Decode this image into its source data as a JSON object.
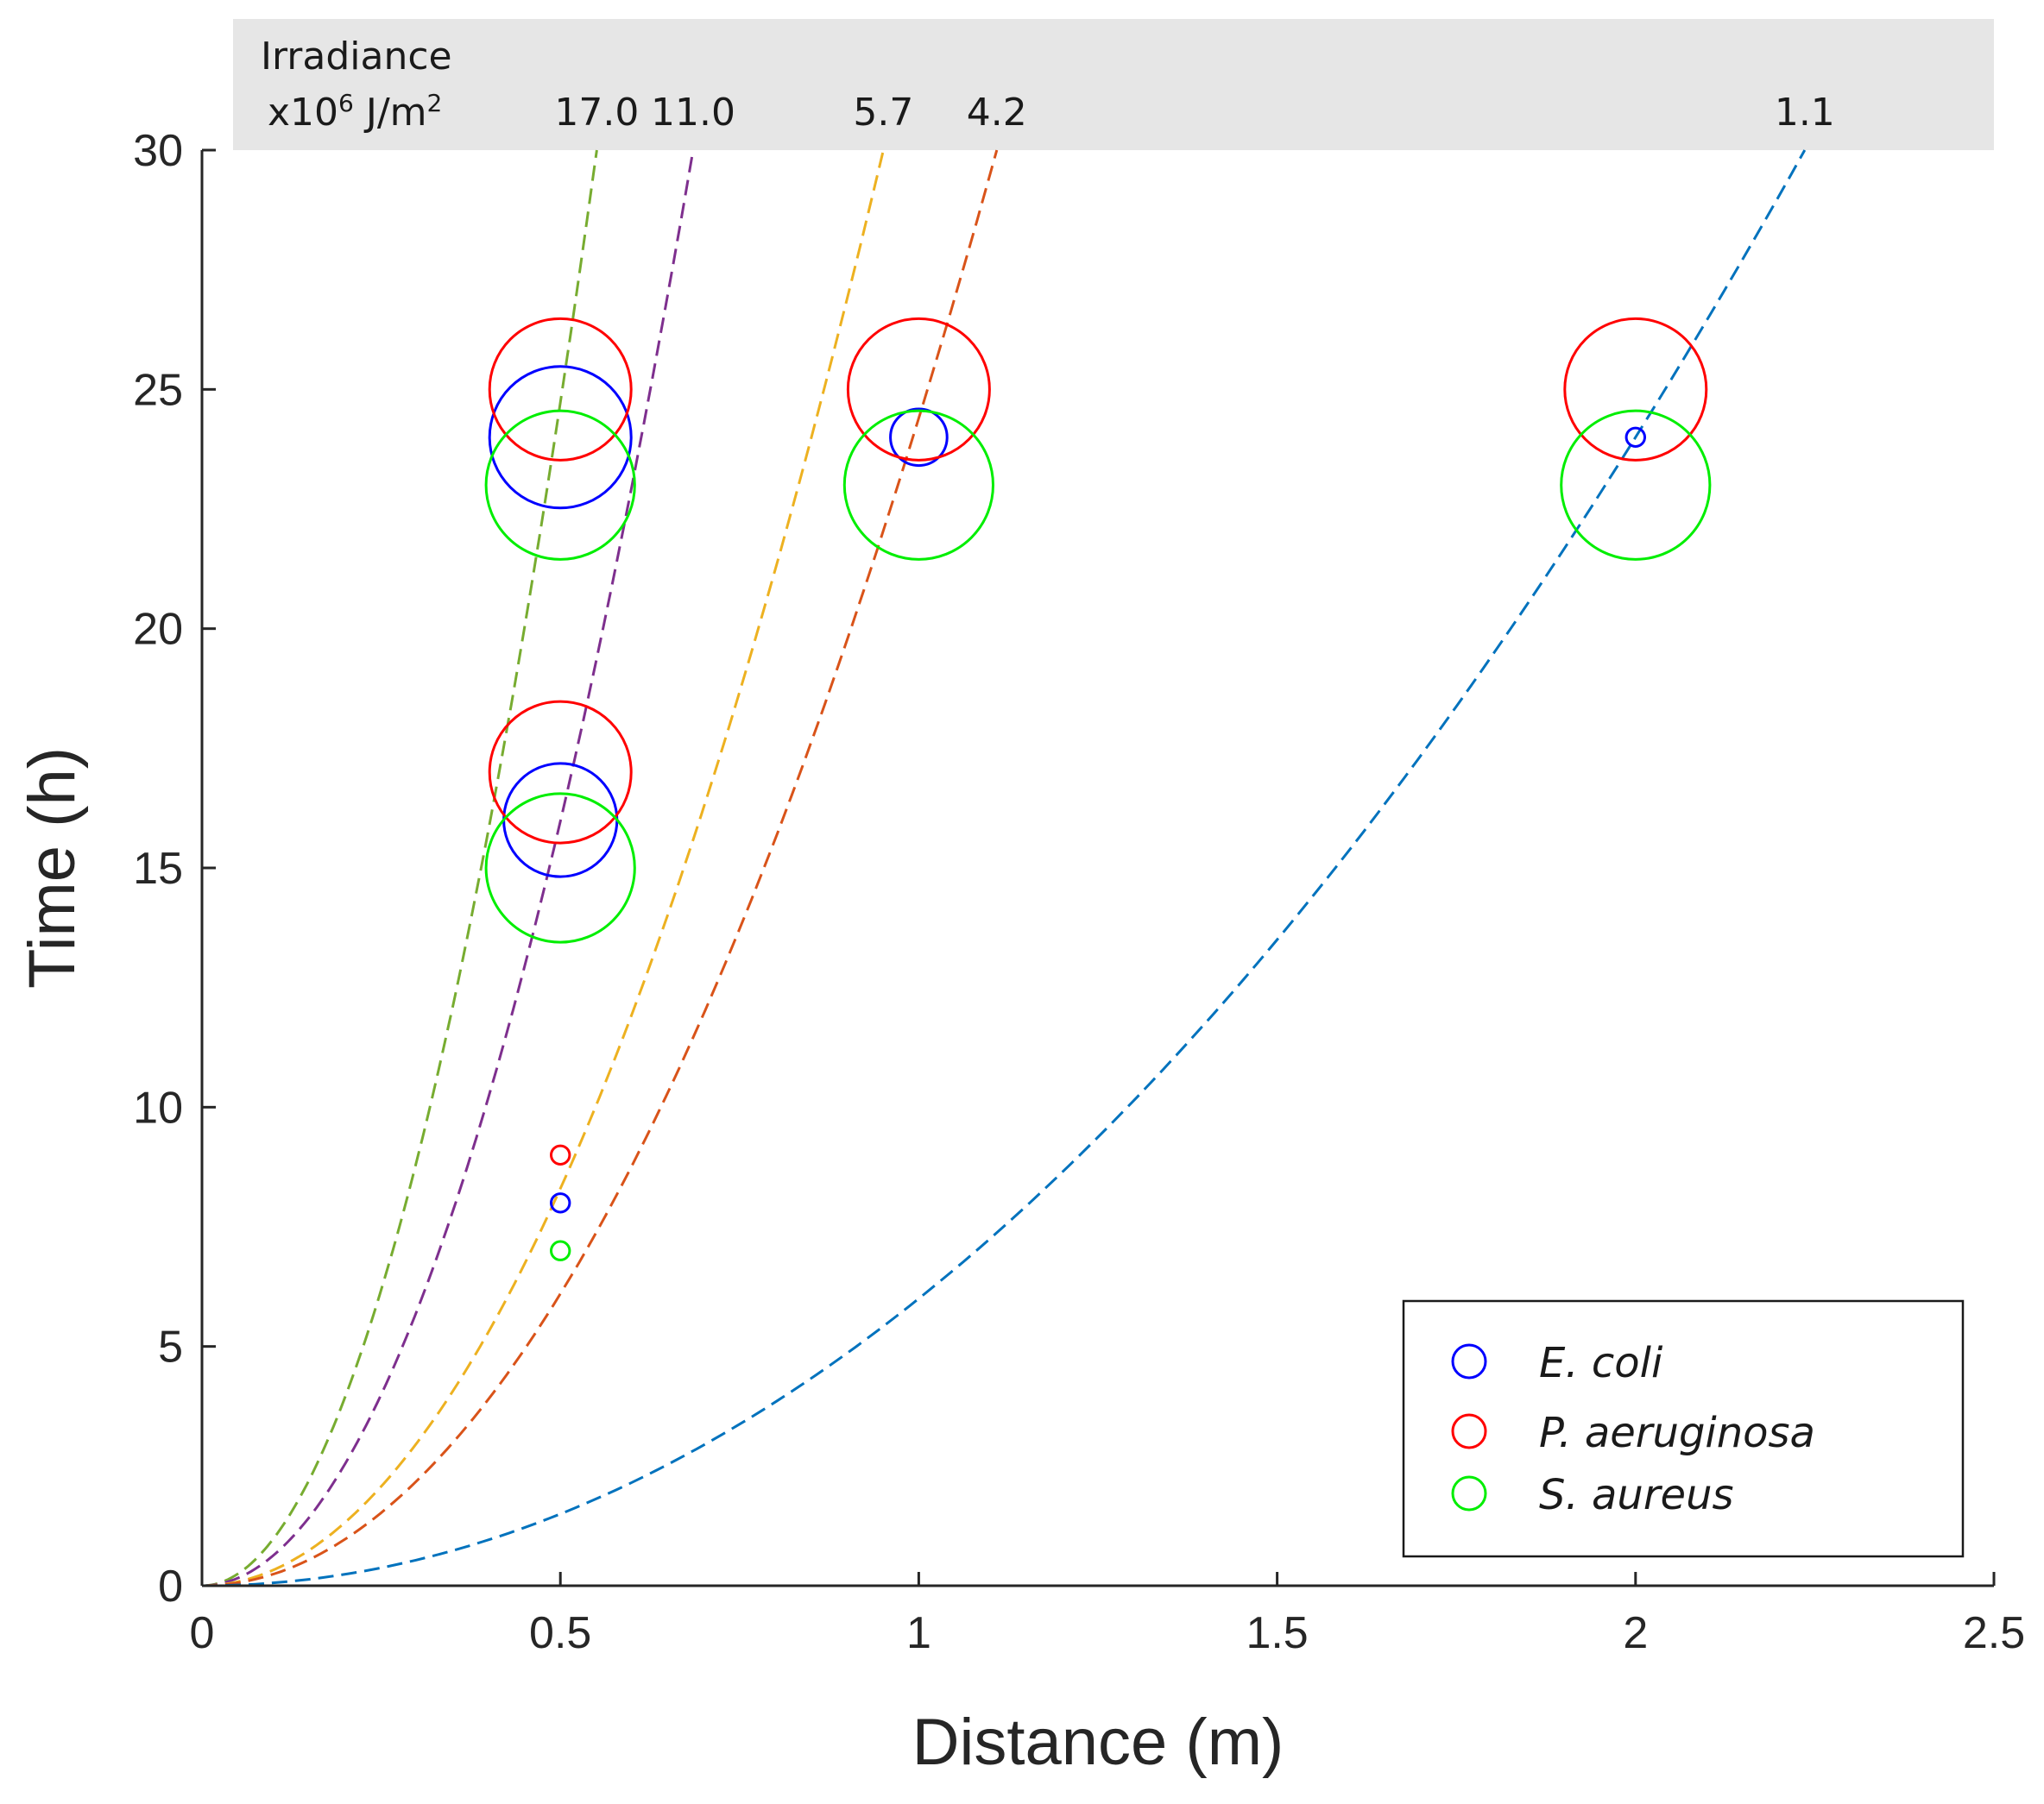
{
  "chart_data": {
    "type": "scatter",
    "xlabel": "Distance (m)",
    "ylabel": "Time (h)",
    "xlim": [
      0,
      2.5
    ],
    "ylim": [
      0,
      30
    ],
    "xticks": [
      0,
      0.5,
      1,
      1.5,
      2,
      2.5
    ],
    "xtick_labels": [
      "0",
      "0.5",
      "1",
      "1.5",
      "2",
      "2.5"
    ],
    "yticks": [
      0,
      5,
      10,
      15,
      20,
      25,
      30
    ],
    "ytick_labels": [
      "0",
      "5",
      "10",
      "15",
      "20",
      "25",
      "30"
    ],
    "grid": false,
    "irradiance_header": {
      "label_line1": "Irradiance",
      "label_line2_prefix": "x10",
      "label_line2_sup": "6",
      "label_line2_unit": " J/m",
      "label_line2_unit_sup": "2"
    },
    "curves": [
      {
        "irradiance": "17.0",
        "color": "#77ac30",
        "coef": 98.9
      },
      {
        "irradiance": "11.0",
        "color": "#7e2f8e",
        "coef": 63.9
      },
      {
        "irradiance": "5.7",
        "color": "#edb120",
        "coef": 33.2
      },
      {
        "irradiance": "4.2",
        "color": "#d95319",
        "coef": 24.4
      },
      {
        "irradiance": "1.1",
        "color": "#0072bd",
        "coef": 6.0
      }
    ],
    "series": [
      {
        "name": "E. coli",
        "color": "#0000ff",
        "points": [
          {
            "x": 0.5,
            "y": 24,
            "size": 1.0
          },
          {
            "x": 0.5,
            "y": 16,
            "size": 0.8
          },
          {
            "x": 0.5,
            "y": 8,
            "size": 0.13
          },
          {
            "x": 1.0,
            "y": 24,
            "size": 0.4
          },
          {
            "x": 2.0,
            "y": 24,
            "size": 0.13
          }
        ]
      },
      {
        "name": "P. aeruginosa",
        "color": "#ff0000",
        "points": [
          {
            "x": 0.5,
            "y": 25,
            "size": 1.0
          },
          {
            "x": 0.5,
            "y": 17,
            "size": 1.0
          },
          {
            "x": 0.5,
            "y": 9,
            "size": 0.13
          },
          {
            "x": 1.0,
            "y": 25,
            "size": 1.0
          },
          {
            "x": 2.0,
            "y": 25,
            "size": 1.0
          }
        ]
      },
      {
        "name": "S. aureus",
        "color": "#00ee00",
        "points": [
          {
            "x": 0.5,
            "y": 23,
            "size": 1.05
          },
          {
            "x": 0.5,
            "y": 15,
            "size": 1.05
          },
          {
            "x": 0.5,
            "y": 7,
            "size": 0.13
          },
          {
            "x": 1.0,
            "y": 23,
            "size": 1.05
          },
          {
            "x": 2.0,
            "y": 23,
            "size": 1.05
          }
        ]
      }
    ],
    "legend": {
      "position": "bottom-right",
      "entries": [
        "E. coli",
        "P. aeruginosa",
        "S. aureus"
      ]
    }
  }
}
